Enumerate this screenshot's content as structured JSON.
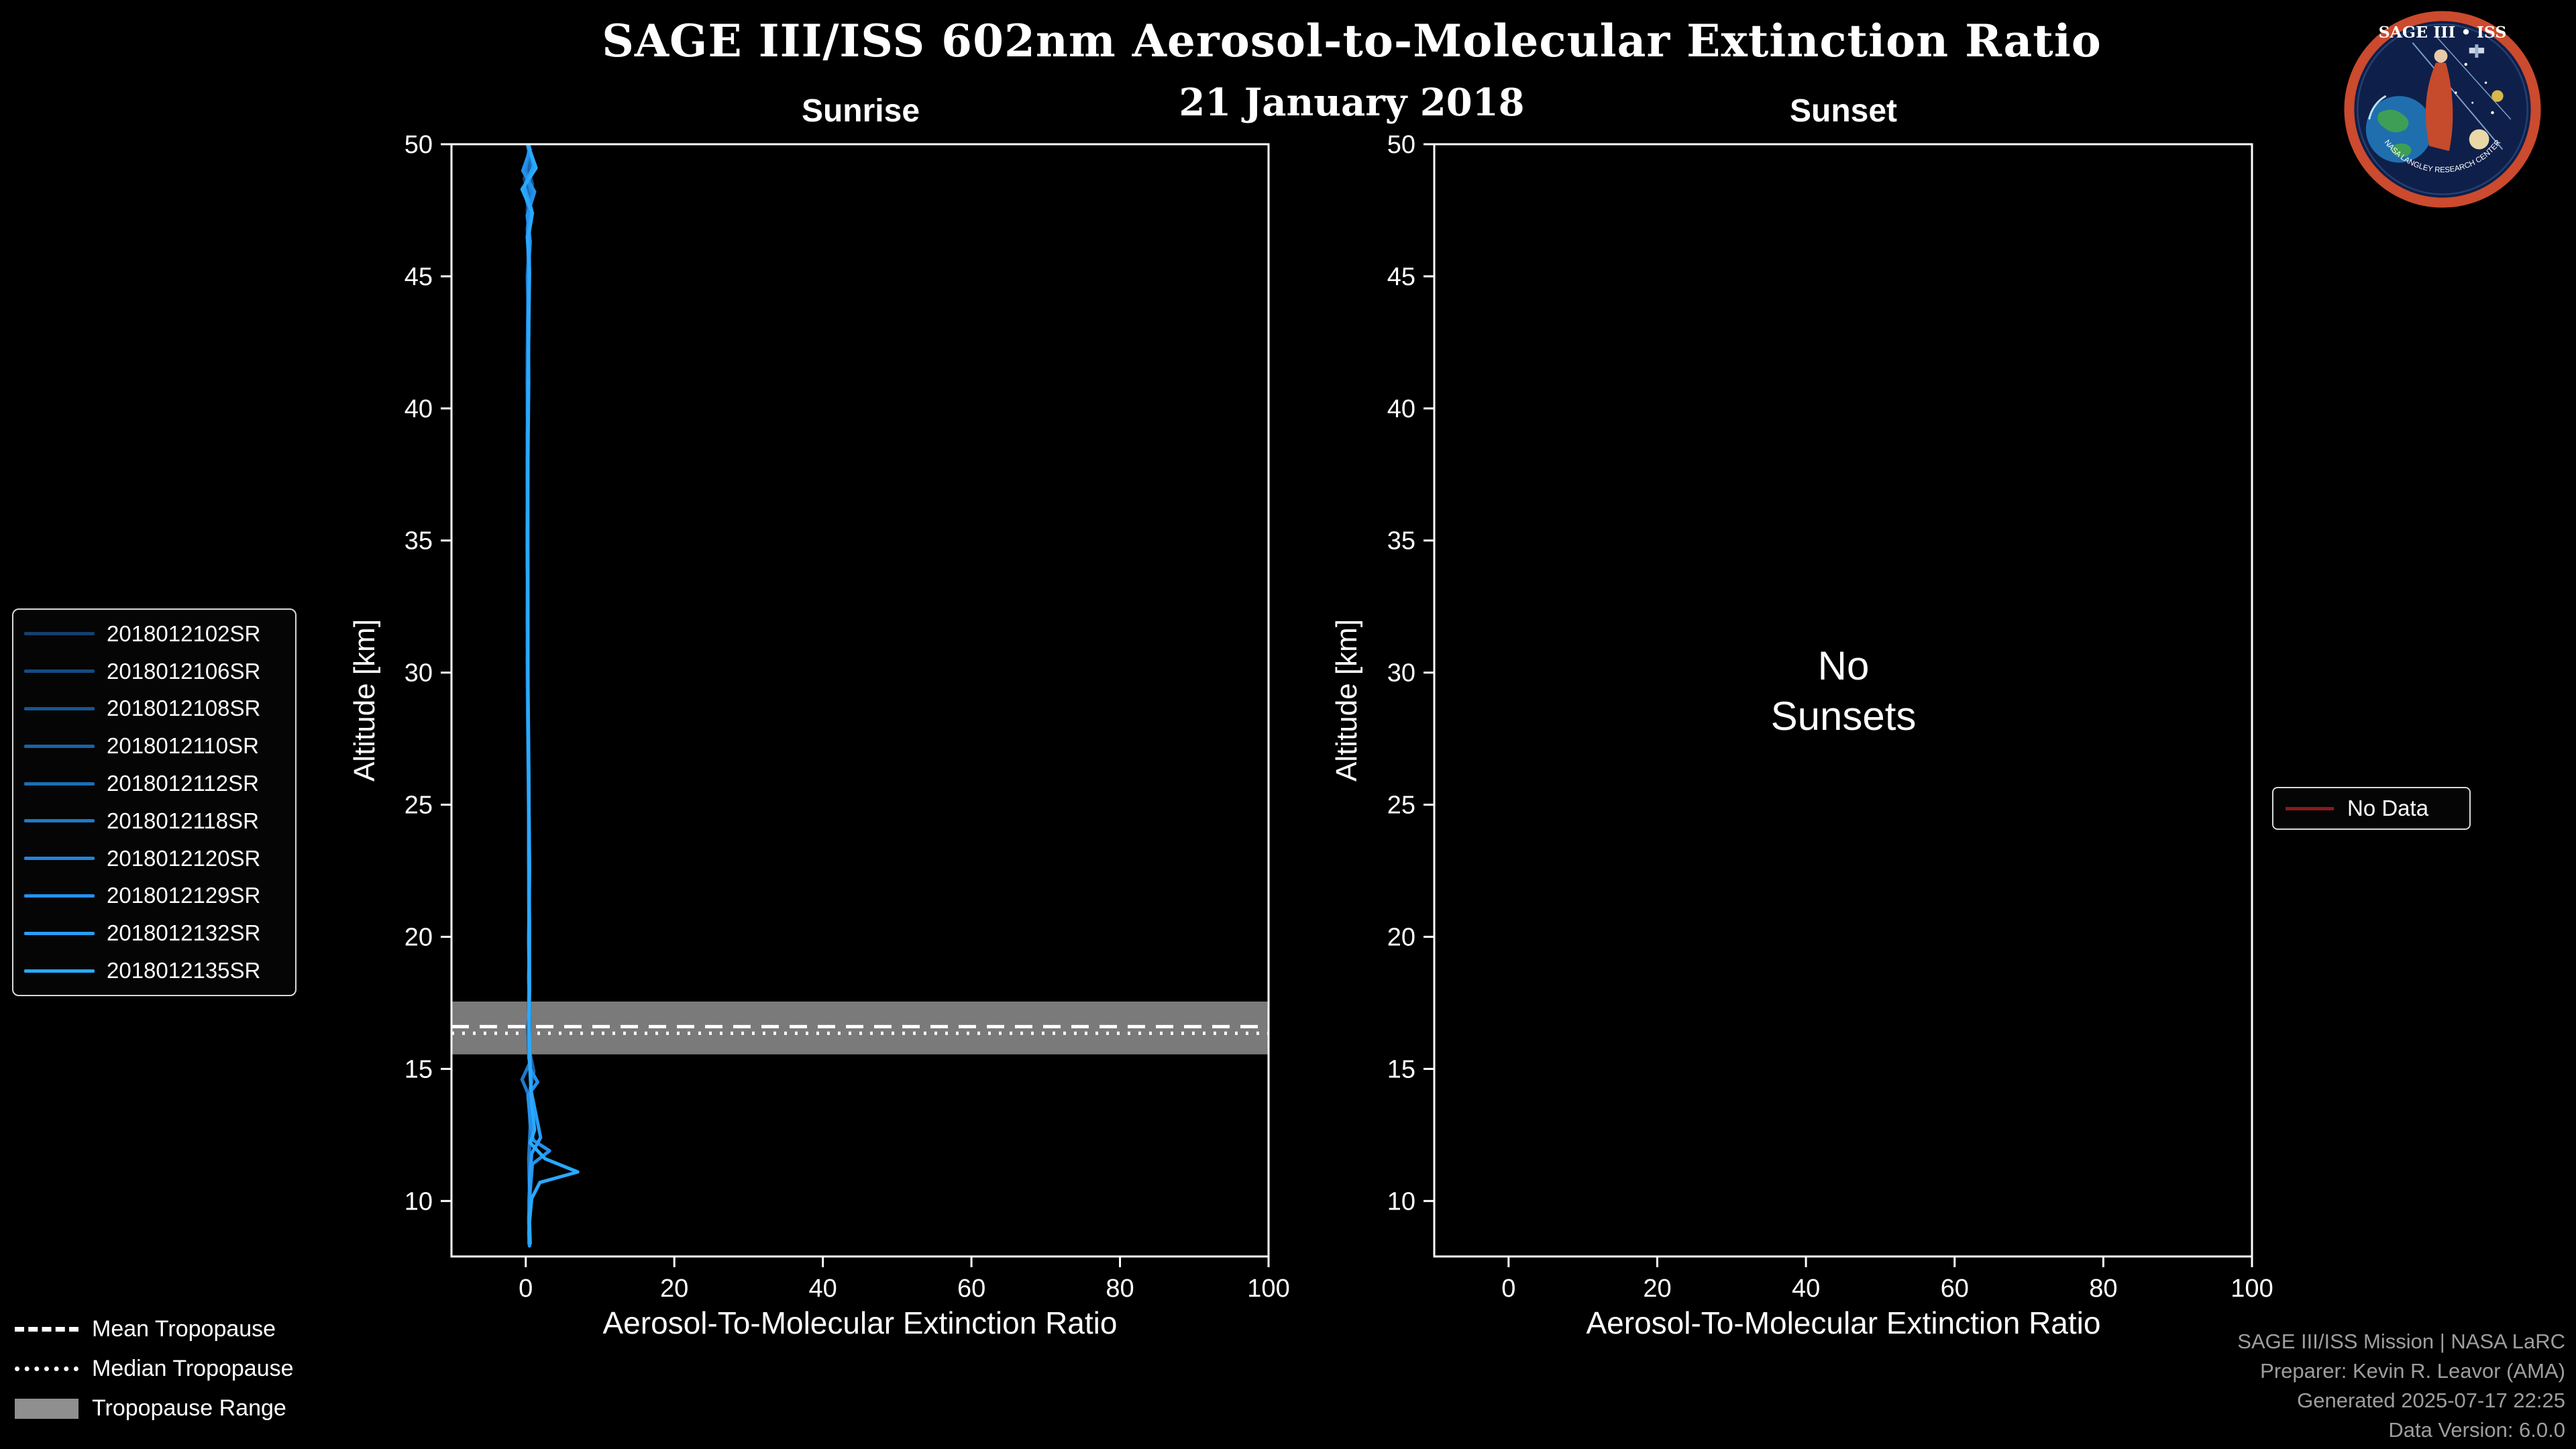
{
  "title": "SAGE III/ISS 602nm Aerosol-to-Molecular Extinction Ratio",
  "date": "21 January 2018",
  "panels": {
    "sunrise": {
      "title": "Sunrise",
      "xlabel": "Aerosol-To-Molecular Extinction Ratio",
      "ylabel": "Altitude [km]"
    },
    "sunset": {
      "title": "Sunset",
      "xlabel": "Aerosol-To-Molecular Extinction Ratio",
      "ylabel": "Altitude [km]",
      "empty_text": "No\nSunsets"
    }
  },
  "legend": {
    "tropopause_items": [
      "Mean Tropopause",
      "Median Tropopause",
      "Tropopause Range"
    ],
    "no_data_label": "No Data",
    "no_data_color": "#8b1a1a"
  },
  "footer": {
    "lines": [
      "SAGE III/ISS Mission | NASA LaRC",
      "Preparer: Kevin R. Leavor (AMA)",
      "Generated 2025-07-17 22:25",
      "Data Version: 6.0.0"
    ]
  },
  "logo": {
    "title": "SAGE III • ISS",
    "arc_text": "NASA LANGLEY RESEARCH CENTER"
  },
  "chart_data": {
    "type": "line",
    "title": "SAGE III/ISS 602nm Aerosol-to-Molecular Extinction Ratio",
    "subtitle": "21 January 2018",
    "xlabel": "Aerosol-To-Molecular Extinction Ratio",
    "ylabel": "Altitude [km]",
    "xlim": [
      -10,
      100
    ],
    "ylim": [
      7.9,
      50
    ],
    "xticks": [
      0,
      20,
      40,
      60,
      80,
      100
    ],
    "yticks": [
      10,
      15,
      20,
      25,
      30,
      35,
      40,
      45,
      50
    ],
    "grid": false,
    "legend_position": "outside-left",
    "tropopause": {
      "mean": 16.6,
      "median": 16.35,
      "range": [
        15.55,
        17.55
      ],
      "band_color": "#8f8f8f"
    },
    "series": [
      {
        "name": "2018012102SR",
        "color": "#14406f",
        "points": [
          [
            0.4,
            50
          ],
          [
            0.7,
            49.4
          ],
          [
            0.1,
            48.8
          ],
          [
            0.6,
            48.2
          ],
          [
            0.2,
            47.5
          ],
          [
            0.5,
            46.5
          ],
          [
            0.3,
            45.5
          ],
          [
            0.4,
            44
          ],
          [
            0.3,
            42
          ],
          [
            0.2,
            39
          ],
          [
            0.3,
            36
          ],
          [
            0.2,
            33
          ],
          [
            0.3,
            30
          ],
          [
            0.4,
            27
          ],
          [
            0.4,
            24
          ],
          [
            0.5,
            21
          ],
          [
            0.5,
            19
          ],
          [
            0.4,
            17.5
          ],
          [
            0.4,
            16.5
          ],
          [
            0.5,
            15.7
          ]
        ]
      },
      {
        "name": "2018012106SR",
        "color": "#164b81",
        "points": [
          [
            0.2,
            50
          ],
          [
            0.8,
            49.3
          ],
          [
            -0.2,
            48.7
          ],
          [
            0.5,
            48
          ],
          [
            0.3,
            47.2
          ],
          [
            0.4,
            46.2
          ],
          [
            0.2,
            45
          ],
          [
            0.3,
            43.5
          ],
          [
            0.2,
            41.5
          ],
          [
            0.3,
            39
          ],
          [
            0.2,
            36
          ],
          [
            0.3,
            33
          ],
          [
            0.2,
            30
          ],
          [
            0.3,
            27
          ],
          [
            0.4,
            24
          ],
          [
            0.4,
            21
          ],
          [
            0.5,
            19
          ],
          [
            0.5,
            17.6
          ],
          [
            0.3,
            16.4
          ],
          [
            0.4,
            15.6
          ]
        ]
      },
      {
        "name": "2018012108SR",
        "color": "#185693",
        "points": [
          [
            0.5,
            49.9
          ],
          [
            0.1,
            49.2
          ],
          [
            0.9,
            48.5
          ],
          [
            0.2,
            47.8
          ],
          [
            0.5,
            47
          ],
          [
            0.3,
            46
          ],
          [
            0.4,
            44.5
          ],
          [
            0.3,
            42.5
          ],
          [
            0.2,
            40
          ],
          [
            0.3,
            37
          ],
          [
            0.2,
            34
          ],
          [
            0.3,
            31
          ],
          [
            0.3,
            28
          ],
          [
            0.4,
            25
          ],
          [
            0.4,
            22
          ],
          [
            0.5,
            19.5
          ],
          [
            0.5,
            18
          ],
          [
            0.4,
            17
          ],
          [
            0.4,
            16.2
          ],
          [
            0.5,
            15.5
          ]
        ]
      },
      {
        "name": "2018012110SR",
        "color": "#1a62a5",
        "points": [
          [
            0.3,
            50
          ],
          [
            0.6,
            49.2
          ],
          [
            0.0,
            48.4
          ],
          [
            0.7,
            47.6
          ],
          [
            0.3,
            46.8
          ],
          [
            0.4,
            45.8
          ],
          [
            0.3,
            44
          ],
          [
            0.2,
            42
          ],
          [
            0.3,
            39.5
          ],
          [
            0.2,
            37
          ],
          [
            0.3,
            34
          ],
          [
            0.2,
            31
          ],
          [
            0.3,
            28
          ],
          [
            0.4,
            25
          ],
          [
            0.5,
            22
          ],
          [
            0.4,
            19.5
          ],
          [
            0.5,
            18
          ],
          [
            0.5,
            16.8
          ],
          [
            0.4,
            15.8
          ],
          [
            1.1,
            14.9
          ],
          [
            0.4,
            14
          ],
          [
            0.7,
            13
          ],
          [
            0.5,
            12
          ],
          [
            0.6,
            11
          ],
          [
            0.4,
            10
          ],
          [
            0.5,
            9
          ],
          [
            0.4,
            8.4
          ]
        ]
      },
      {
        "name": "2018012112SR",
        "color": "#1c6db7",
        "points": [
          [
            0.4,
            49.8
          ],
          [
            0.9,
            49
          ],
          [
            0.2,
            48.3
          ],
          [
            0.6,
            47.6
          ],
          [
            0.2,
            46.8
          ],
          [
            0.5,
            45.6
          ],
          [
            0.3,
            43.8
          ],
          [
            0.4,
            41.5
          ],
          [
            0.2,
            39
          ],
          [
            0.3,
            36.5
          ],
          [
            0.3,
            33.5
          ],
          [
            0.2,
            30.5
          ],
          [
            0.3,
            27.5
          ],
          [
            0.4,
            24.5
          ],
          [
            0.4,
            21.5
          ],
          [
            0.5,
            19
          ],
          [
            0.4,
            17.6
          ],
          [
            0.5,
            16.6
          ],
          [
            0.4,
            15.5
          ]
        ]
      },
      {
        "name": "2018012118SR",
        "color": "#1f79c8",
        "points": [
          [
            0.2,
            50
          ],
          [
            1.0,
            49.1
          ],
          [
            -0.3,
            48.3
          ],
          [
            0.6,
            47.4
          ],
          [
            0.3,
            46.4
          ],
          [
            0.4,
            45.2
          ],
          [
            0.3,
            43.2
          ],
          [
            0.2,
            41
          ],
          [
            0.3,
            38.5
          ],
          [
            0.2,
            35.5
          ],
          [
            0.3,
            32.5
          ],
          [
            0.3,
            29.5
          ],
          [
            0.4,
            26.5
          ],
          [
            0.4,
            23.5
          ],
          [
            0.5,
            20.5
          ],
          [
            0.4,
            18.5
          ],
          [
            0.5,
            17
          ],
          [
            0.4,
            16
          ],
          [
            0.5,
            15.2
          ],
          [
            -0.5,
            14.6
          ],
          [
            0.4,
            14
          ],
          [
            0.6,
            12.8
          ],
          [
            0.4,
            11.6
          ],
          [
            0.5,
            10.4
          ],
          [
            0.4,
            9.2
          ],
          [
            0.5,
            8.5
          ]
        ]
      },
      {
        "name": "2018012120SR",
        "color": "#2185da",
        "points": [
          [
            0.5,
            49.9
          ],
          [
            0.0,
            49
          ],
          [
            0.8,
            48.1
          ],
          [
            0.3,
            47.2
          ],
          [
            0.5,
            46.2
          ],
          [
            0.3,
            45
          ],
          [
            0.4,
            43
          ],
          [
            0.3,
            40.5
          ],
          [
            0.2,
            38
          ],
          [
            0.3,
            35
          ],
          [
            0.2,
            32
          ],
          [
            0.3,
            29
          ],
          [
            0.4,
            26
          ],
          [
            0.4,
            23
          ],
          [
            0.5,
            20
          ],
          [
            0.5,
            18.2
          ],
          [
            0.4,
            17
          ],
          [
            0.5,
            16
          ],
          [
            0.4,
            15.4
          ]
        ]
      },
      {
        "name": "2018012129SR",
        "color": "#2491ec",
        "points": [
          [
            0.6,
            49.8
          ],
          [
            -0.4,
            49
          ],
          [
            1.2,
            48.2
          ],
          [
            0.2,
            47.3
          ],
          [
            0.6,
            46.3
          ],
          [
            0.3,
            45
          ],
          [
            0.4,
            42.8
          ],
          [
            0.3,
            40.2
          ],
          [
            0.2,
            37.5
          ],
          [
            0.3,
            34.5
          ],
          [
            0.3,
            31.5
          ],
          [
            0.3,
            28.5
          ],
          [
            0.4,
            25.5
          ],
          [
            0.5,
            22.5
          ],
          [
            0.4,
            19.8
          ],
          [
            0.5,
            18
          ],
          [
            0.4,
            16.8
          ],
          [
            0.5,
            15.8
          ],
          [
            0.6,
            15
          ],
          [
            1.6,
            14.5
          ],
          [
            0.3,
            14
          ],
          [
            0.6,
            13
          ],
          [
            1.0,
            12.3
          ],
          [
            3.2,
            11.9
          ],
          [
            0.9,
            11.4
          ],
          [
            0.6,
            10.4
          ],
          [
            0.4,
            9.4
          ],
          [
            0.5,
            8.4
          ]
        ]
      },
      {
        "name": "2018012132SR",
        "color": "#279df9",
        "points": [
          [
            0.3,
            50
          ],
          [
            1.1,
            49.2
          ],
          [
            -0.2,
            48.4
          ],
          [
            0.8,
            47.5
          ],
          [
            0.2,
            46.5
          ],
          [
            0.5,
            45.3
          ],
          [
            0.3,
            43.4
          ],
          [
            0.4,
            41
          ],
          [
            0.3,
            38.2
          ],
          [
            0.2,
            35.2
          ],
          [
            0.3,
            32.2
          ],
          [
            0.3,
            29.2
          ],
          [
            0.4,
            26.2
          ],
          [
            0.4,
            23.2
          ],
          [
            0.5,
            20.2
          ],
          [
            0.4,
            18.4
          ],
          [
            0.5,
            17.2
          ],
          [
            0.4,
            16.2
          ],
          [
            0.5,
            15.3
          ],
          [
            0.7,
            14.2
          ],
          [
            2.0,
            12.4
          ],
          [
            0.8,
            11.8
          ],
          [
            0.5,
            10.8
          ],
          [
            0.6,
            9.8
          ],
          [
            0.4,
            8.8
          ],
          [
            0.5,
            8.3
          ]
        ]
      },
      {
        "name": "2018012135SR",
        "color": "#2aa9ff",
        "points": [
          [
            0.4,
            49.9
          ],
          [
            1.4,
            49.1
          ],
          [
            -0.5,
            48.3
          ],
          [
            0.9,
            47.4
          ],
          [
            0.3,
            46.4
          ],
          [
            0.5,
            45.1
          ],
          [
            0.4,
            43
          ],
          [
            0.3,
            40.6
          ],
          [
            0.3,
            37.8
          ],
          [
            0.2,
            34.8
          ],
          [
            0.3,
            31.8
          ],
          [
            0.3,
            28.8
          ],
          [
            0.4,
            25.8
          ],
          [
            0.5,
            22.8
          ],
          [
            0.4,
            20
          ],
          [
            0.5,
            18.2
          ],
          [
            0.4,
            17
          ],
          [
            0.5,
            16
          ],
          [
            0.6,
            15.1
          ],
          [
            0.8,
            13.6
          ],
          [
            1.2,
            12.7
          ],
          [
            0.6,
            12.2
          ],
          [
            2.6,
            11.6
          ],
          [
            7.0,
            11.1
          ],
          [
            1.9,
            10.7
          ],
          [
            0.8,
            10.1
          ],
          [
            0.5,
            9.2
          ],
          [
            0.6,
            8.4
          ]
        ]
      }
    ]
  }
}
